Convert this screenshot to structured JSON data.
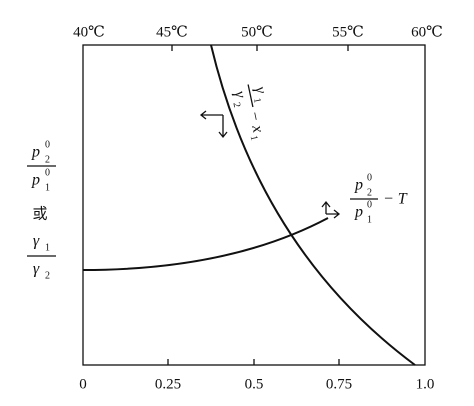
{
  "top_axis": {
    "labels": [
      "40℃",
      "45℃",
      "50℃",
      "55℃",
      "60℃"
    ]
  },
  "bottom_axis": {
    "labels": [
      "0",
      "0.25",
      "0.5",
      "0.75",
      "1.0"
    ]
  },
  "y_label": {
    "pressure_ratio": {
      "num": "p",
      "num_sup": "0",
      "num_sub": "2",
      "den": "p",
      "den_sup": "0",
      "den_sub": "1"
    },
    "or": "或",
    "gamma_ratio": {
      "num": "γ",
      "num_sub": "1",
      "den": "γ",
      "den_sub": "2"
    }
  },
  "curves": [
    {
      "label": {
        "num": "γ",
        "num_sub": "1",
        "den": "γ",
        "den_sub": "2",
        "suffix": "− x",
        "suffix_sub": "1"
      }
    },
    {
      "label": {
        "num": "p",
        "num_sup": "0",
        "num_sub": "2",
        "den": "p",
        "den_sup": "0",
        "den_sub": "1",
        "suffix": "− T"
      }
    }
  ]
}
